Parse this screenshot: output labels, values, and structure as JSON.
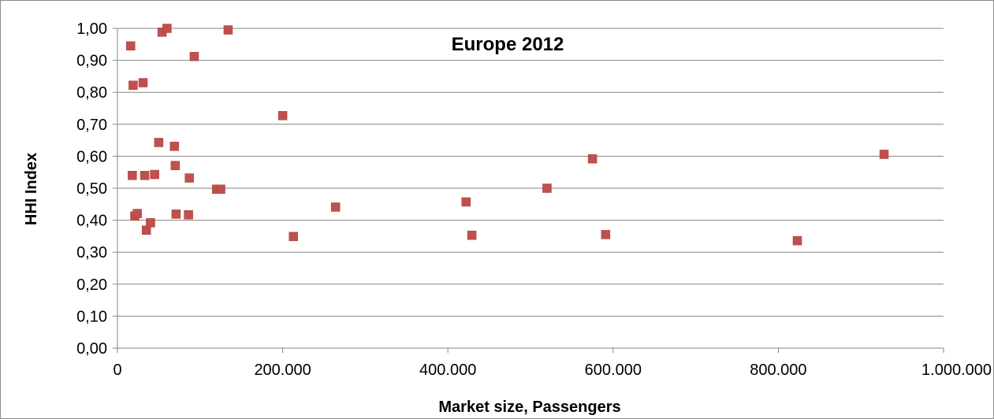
{
  "chart_data": {
    "type": "scatter",
    "title": "Europe 2012",
    "xlabel": "Market size, Passengers",
    "ylabel": "HHI Index",
    "xlim": [
      0,
      1000000
    ],
    "ylim": [
      0,
      1
    ],
    "x_ticks": [
      0,
      200000,
      400000,
      600000,
      800000,
      1000000
    ],
    "x_tick_labels": [
      "0",
      "200.000",
      "400.000",
      "600.000",
      "800.000",
      "1.000.000"
    ],
    "y_ticks": [
      0,
      0.1,
      0.2,
      0.3,
      0.4,
      0.5,
      0.6,
      0.7,
      0.8,
      0.9,
      1.0
    ],
    "y_tick_labels": [
      "0,00",
      "0,10",
      "0,20",
      "0,30",
      "0,40",
      "0,50",
      "0,60",
      "0,70",
      "0,80",
      "0,90",
      "1,00"
    ],
    "grid": "horizontal",
    "legend": "none",
    "marker_color": "#c0504d",
    "marker_shape": "square",
    "points": [
      {
        "x": 16000,
        "y": 0.945
      },
      {
        "x": 18000,
        "y": 0.54
      },
      {
        "x": 19000,
        "y": 0.822
      },
      {
        "x": 21000,
        "y": 0.413
      },
      {
        "x": 24000,
        "y": 0.421
      },
      {
        "x": 31000,
        "y": 0.83
      },
      {
        "x": 33000,
        "y": 0.54
      },
      {
        "x": 35000,
        "y": 0.369
      },
      {
        "x": 40000,
        "y": 0.392
      },
      {
        "x": 45000,
        "y": 0.543
      },
      {
        "x": 50000,
        "y": 0.643
      },
      {
        "x": 54000,
        "y": 0.988
      },
      {
        "x": 60000,
        "y": 1.0
      },
      {
        "x": 69000,
        "y": 0.631
      },
      {
        "x": 70000,
        "y": 0.571
      },
      {
        "x": 71000,
        "y": 0.419
      },
      {
        "x": 86000,
        "y": 0.417
      },
      {
        "x": 87000,
        "y": 0.532
      },
      {
        "x": 93000,
        "y": 0.912
      },
      {
        "x": 120000,
        "y": 0.497
      },
      {
        "x": 125000,
        "y": 0.497
      },
      {
        "x": 134000,
        "y": 0.995
      },
      {
        "x": 200000,
        "y": 0.727
      },
      {
        "x": 213000,
        "y": 0.349
      },
      {
        "x": 264000,
        "y": 0.441
      },
      {
        "x": 422000,
        "y": 0.457
      },
      {
        "x": 429000,
        "y": 0.353
      },
      {
        "x": 520000,
        "y": 0.5
      },
      {
        "x": 575000,
        "y": 0.592
      },
      {
        "x": 591000,
        "y": 0.355
      },
      {
        "x": 823000,
        "y": 0.336
      },
      {
        "x": 928000,
        "y": 0.606
      }
    ]
  }
}
